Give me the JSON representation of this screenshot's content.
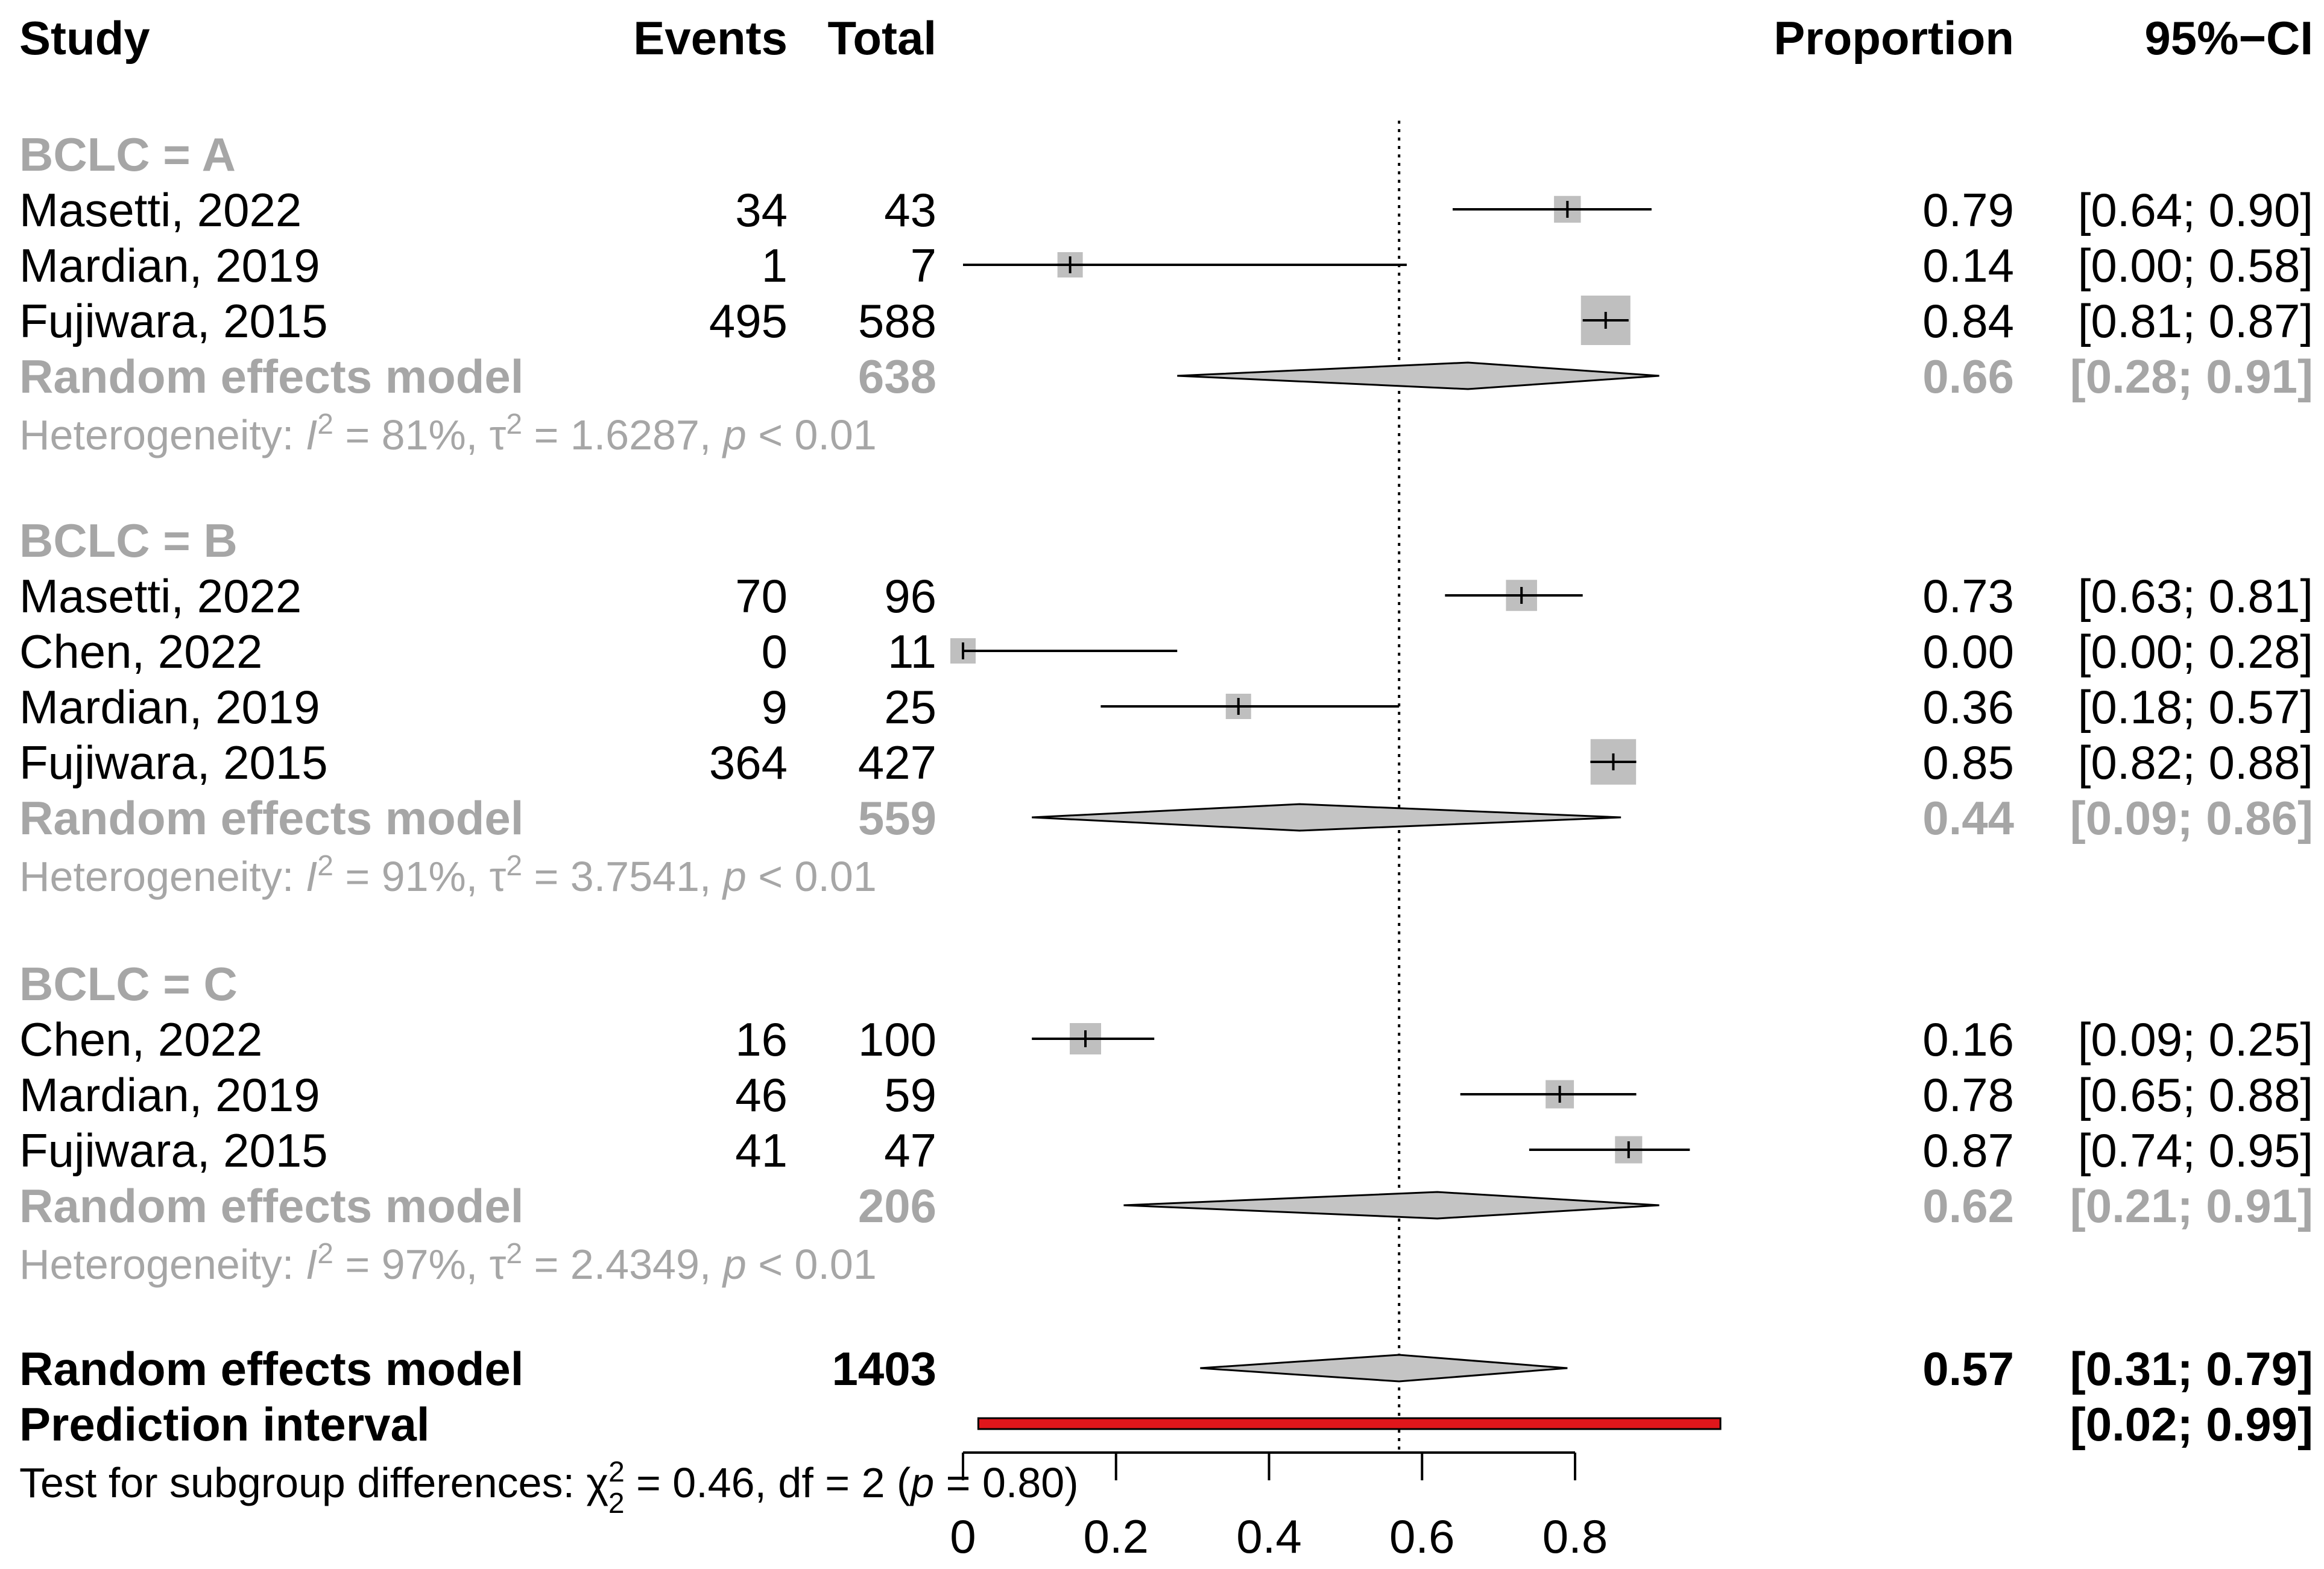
{
  "chart_data": {
    "type": "forest",
    "colors": {
      "text": "#000000",
      "subgroup": "#a6a6a6",
      "square": "#bfbfbf",
      "diamond": "#c4c4c4",
      "prediction": "#e0161b"
    },
    "headers": {
      "study": "Study",
      "events": "Events",
      "total": "Total",
      "proportion": "Proportion",
      "ci": "95%−CI"
    },
    "reference_value": 0.57,
    "axis": {
      "range": [
        0,
        0.8
      ],
      "ticks": [
        0,
        0.2,
        0.4,
        0.6,
        0.8
      ],
      "tick_labels": [
        "0",
        "0.2",
        "0.4",
        "0.6",
        "0.8"
      ]
    },
    "subgroups": [
      {
        "label": "BCLC = A",
        "studies": [
          {
            "study": "Masetti, 2022",
            "events": "34",
            "total": "43",
            "prop": "0.79",
            "ci": "[0.64; 0.90]",
            "est": 0.79,
            "lo": 0.64,
            "hi": 0.9
          },
          {
            "study": "Mardian, 2019",
            "events": "1",
            "total": "7",
            "prop": "0.14",
            "ci": "[0.00; 0.58]",
            "est": 0.14,
            "lo": 0.0,
            "hi": 0.58
          },
          {
            "study": "Fujiwara, 2015",
            "events": "495",
            "total": "588",
            "prop": "0.84",
            "ci": "[0.81; 0.87]",
            "est": 0.84,
            "lo": 0.81,
            "hi": 0.87
          }
        ],
        "model": {
          "label": "Random effects model",
          "total": "638",
          "prop": "0.66",
          "ci": "[0.28; 0.91]",
          "est": 0.66,
          "lo": 0.28,
          "hi": 0.91
        },
        "heterogeneity": {
          "prefix": "Heterogeneity: ",
          "i2": "81%",
          "tau2": "1.6287",
          "p": "< 0.01"
        }
      },
      {
        "label": "BCLC = B",
        "studies": [
          {
            "study": "Masetti, 2022",
            "events": "70",
            "total": "96",
            "prop": "0.73",
            "ci": "[0.63; 0.81]",
            "est": 0.73,
            "lo": 0.63,
            "hi": 0.81
          },
          {
            "study": "Chen, 2022",
            "events": "0",
            "total": "11",
            "prop": "0.00",
            "ci": "[0.00; 0.28]",
            "est": 0.0,
            "lo": 0.0,
            "hi": 0.28
          },
          {
            "study": "Mardian, 2019",
            "events": "9",
            "total": "25",
            "prop": "0.36",
            "ci": "[0.18; 0.57]",
            "est": 0.36,
            "lo": 0.18,
            "hi": 0.57
          },
          {
            "study": "Fujiwara, 2015",
            "events": "364",
            "total": "427",
            "prop": "0.85",
            "ci": "[0.82; 0.88]",
            "est": 0.85,
            "lo": 0.82,
            "hi": 0.88
          }
        ],
        "model": {
          "label": "Random effects model",
          "total": "559",
          "prop": "0.44",
          "ci": "[0.09; 0.86]",
          "est": 0.44,
          "lo": 0.09,
          "hi": 0.86
        },
        "heterogeneity": {
          "prefix": "Heterogeneity: ",
          "i2": "91%",
          "tau2": "3.7541",
          "p": "< 0.01"
        }
      },
      {
        "label": "BCLC = C",
        "studies": [
          {
            "study": "Chen, 2022",
            "events": "16",
            "total": "100",
            "prop": "0.16",
            "ci": "[0.09; 0.25]",
            "est": 0.16,
            "lo": 0.09,
            "hi": 0.25
          },
          {
            "study": "Mardian, 2019",
            "events": "46",
            "total": "59",
            "prop": "0.78",
            "ci": "[0.65; 0.88]",
            "est": 0.78,
            "lo": 0.65,
            "hi": 0.88
          },
          {
            "study": "Fujiwara, 2015",
            "events": "41",
            "total": "47",
            "prop": "0.87",
            "ci": "[0.74; 0.95]",
            "est": 0.87,
            "lo": 0.74,
            "hi": 0.95
          }
        ],
        "model": {
          "label": "Random effects model",
          "total": "206",
          "prop": "0.62",
          "ci": "[0.21; 0.91]",
          "est": 0.62,
          "lo": 0.21,
          "hi": 0.91
        },
        "heterogeneity": {
          "prefix": "Heterogeneity: ",
          "i2": "97%",
          "tau2": "2.4349",
          "p": "< 0.01"
        }
      }
    ],
    "overall": {
      "label": "Random effects model",
      "total": "1403",
      "prop": "0.57",
      "ci": "[0.31; 0.79]",
      "est": 0.57,
      "lo": 0.31,
      "hi": 0.79
    },
    "prediction": {
      "label": "Prediction interval",
      "ci": "[0.02; 0.99]",
      "lo": 0.02,
      "hi": 0.99
    },
    "subgroup_test": {
      "prefix": "Test for subgroup differences: ",
      "chi2": "0.46",
      "df": "2",
      "p": "0.80"
    }
  }
}
